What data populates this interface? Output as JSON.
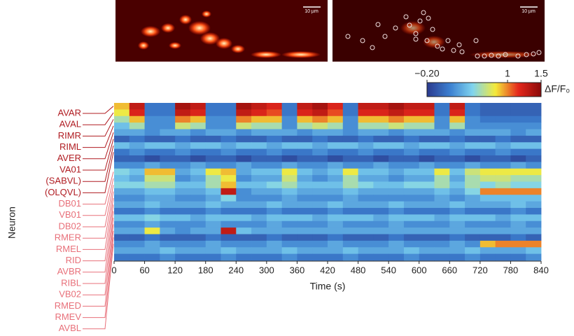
{
  "chart_data": {
    "type": "heatmap",
    "x_label": "Time (s)",
    "y_label": "Neuron",
    "xlim": [
      0,
      840
    ],
    "xticks": [
      0,
      60,
      120,
      180,
      240,
      300,
      360,
      420,
      480,
      540,
      600,
      660,
      720,
      780,
      840
    ],
    "clim": [
      -0.2,
      1.5
    ],
    "cticks": [
      {
        "value": -0.2,
        "label": "−0.20"
      },
      1,
      1.5
    ],
    "colorbar_label": "ΔF/F₀",
    "colormap": [
      "#2a3a8e",
      "#3c7fd0",
      "#7fd4ef",
      "#f4ea3a",
      "#e5281c",
      "#8a0a0a"
    ],
    "scale_bars": [
      "10 µm",
      "10 µm"
    ],
    "neuron_groups": [
      {
        "color": "#b01c22",
        "names": [
          "AVAR",
          "AVAL",
          "RIMR",
          "RIML",
          "AVER",
          "VA01",
          "(SABVL)",
          "(OLQVL)"
        ]
      },
      {
        "color": "#e8707a",
        "names": [
          "DB01",
          "VB01",
          "DB02",
          "RMER",
          "RMEL",
          "RID",
          "AVBR",
          "RIBL",
          "VB02",
          "RMED",
          "RMEV",
          "AVBL"
        ]
      }
    ],
    "values": [
      [
        0.9,
        1.3,
        0.1,
        0.1,
        1.4,
        1.3,
        0.1,
        0.1,
        1.4,
        1.3,
        1.2,
        0.1,
        1.3,
        1.4,
        1.2,
        0.1,
        1.3,
        1.3,
        1.4,
        1.3,
        1.3,
        0.1,
        1.3,
        0.1,
        0.0,
        0.0,
        0.0,
        0.0
      ],
      [
        0.8,
        1.2,
        0.1,
        0.1,
        1.3,
        1.2,
        0.1,
        0.1,
        1.3,
        1.2,
        1.1,
        0.1,
        1.2,
        1.3,
        1.1,
        0.1,
        1.2,
        1.2,
        1.3,
        1.2,
        1.2,
        0.1,
        1.2,
        0.1,
        0.0,
        0.0,
        0.0,
        0.0
      ],
      [
        0.6,
        0.9,
        0.2,
        0.2,
        1.0,
        0.9,
        0.2,
        0.2,
        1.0,
        0.9,
        0.9,
        0.2,
        0.9,
        1.0,
        0.9,
        0.2,
        0.9,
        0.9,
        1.0,
        0.9,
        0.9,
        0.2,
        0.9,
        0.2,
        0.1,
        0.1,
        0.1,
        0.1
      ],
      [
        0.4,
        0.6,
        0.2,
        0.2,
        0.7,
        0.6,
        0.2,
        0.2,
        0.7,
        0.6,
        0.6,
        0.2,
        0.6,
        0.7,
        0.6,
        0.2,
        0.6,
        0.6,
        0.7,
        0.6,
        0.6,
        0.2,
        0.6,
        0.2,
        0.2,
        0.2,
        0.2,
        0.2
      ],
      [
        0.3,
        0.3,
        0.2,
        0.3,
        0.3,
        0.2,
        0.3,
        0.3,
        0.2,
        0.3,
        0.3,
        0.3,
        0.2,
        0.3,
        0.3,
        0.2,
        0.3,
        0.3,
        0.2,
        0.3,
        0.3,
        0.3,
        0.2,
        0.3,
        0.3,
        0.3,
        0.2,
        0.3
      ],
      [
        0.0,
        0.1,
        0.0,
        0.0,
        0.1,
        0.0,
        0.0,
        0.1,
        0.0,
        0.0,
        0.1,
        0.0,
        0.0,
        0.1,
        0.0,
        0.0,
        0.1,
        0.0,
        0.0,
        0.1,
        0.0,
        0.0,
        0.1,
        0.0,
        0.0,
        0.1,
        0.0,
        0.0
      ],
      [
        0.4,
        0.3,
        0.4,
        0.4,
        0.3,
        0.4,
        0.4,
        0.3,
        0.4,
        0.4,
        0.3,
        0.4,
        0.4,
        0.3,
        0.4,
        0.4,
        0.3,
        0.4,
        0.4,
        0.3,
        0.4,
        0.4,
        0.3,
        0.4,
        0.4,
        0.3,
        0.4,
        0.4
      ],
      [
        0.1,
        0.2,
        0.1,
        0.1,
        0.2,
        0.1,
        0.1,
        0.2,
        0.1,
        0.1,
        0.2,
        0.1,
        0.1,
        0.2,
        0.1,
        0.1,
        0.2,
        0.1,
        0.1,
        0.2,
        0.1,
        0.1,
        0.2,
        0.1,
        0.1,
        0.2,
        0.1,
        0.1
      ],
      [
        0.0,
        0.0,
        -0.1,
        0.0,
        0.0,
        -0.1,
        0.0,
        0.0,
        -0.1,
        0.0,
        0.0,
        -0.1,
        0.0,
        0.0,
        -0.1,
        0.0,
        0.0,
        -0.1,
        0.0,
        0.0,
        -0.1,
        0.0,
        0.0,
        -0.1,
        0.0,
        0.0,
        -0.1,
        0.0
      ],
      [
        0.2,
        0.2,
        0.3,
        0.2,
        0.2,
        0.3,
        0.2,
        0.2,
        0.3,
        0.2,
        0.2,
        0.3,
        0.2,
        0.2,
        0.3,
        0.2,
        0.2,
        0.3,
        0.2,
        0.2,
        0.3,
        0.2,
        0.2,
        0.3,
        0.2,
        0.2,
        0.3,
        0.2
      ],
      [
        0.5,
        0.4,
        0.9,
        0.9,
        0.3,
        0.4,
        0.8,
        0.9,
        0.3,
        0.4,
        0.4,
        0.8,
        0.4,
        0.3,
        0.4,
        0.8,
        0.4,
        0.4,
        0.3,
        0.4,
        0.4,
        0.8,
        0.4,
        0.7,
        0.8,
        0.8,
        0.8,
        0.8
      ],
      [
        0.4,
        0.3,
        0.7,
        0.7,
        0.2,
        0.3,
        0.6,
        0.8,
        0.2,
        0.3,
        0.3,
        0.7,
        0.3,
        0.2,
        0.3,
        0.6,
        0.3,
        0.3,
        0.2,
        0.3,
        0.3,
        0.6,
        0.3,
        0.6,
        0.7,
        0.7,
        0.6,
        0.6
      ],
      [
        0.5,
        0.5,
        0.6,
        0.6,
        0.4,
        0.4,
        0.6,
        0.9,
        0.4,
        0.4,
        0.5,
        0.6,
        0.4,
        0.4,
        0.4,
        0.6,
        0.5,
        0.4,
        0.4,
        0.5,
        0.5,
        0.6,
        0.4,
        0.6,
        0.5,
        0.6,
        0.5,
        0.5
      ],
      [
        0.3,
        0.3,
        0.4,
        0.4,
        0.3,
        0.3,
        0.4,
        1.3,
        0.2,
        0.3,
        0.3,
        0.4,
        0.3,
        0.3,
        0.3,
        0.4,
        0.3,
        0.3,
        0.3,
        0.3,
        0.3,
        0.4,
        0.3,
        0.5,
        1.0,
        1.0,
        1.0,
        1.0
      ],
      [
        0.2,
        0.2,
        0.3,
        0.3,
        0.2,
        0.2,
        0.3,
        0.5,
        0.2,
        0.2,
        0.2,
        0.3,
        0.2,
        0.2,
        0.2,
        0.3,
        0.2,
        0.2,
        0.2,
        0.2,
        0.2,
        0.3,
        0.2,
        0.3,
        0.4,
        0.4,
        0.4,
        0.4
      ],
      [
        0.3,
        0.3,
        0.4,
        0.3,
        0.3,
        0.3,
        0.4,
        0.3,
        0.3,
        0.3,
        0.4,
        0.3,
        0.3,
        0.3,
        0.4,
        0.3,
        0.3,
        0.3,
        0.4,
        0.3,
        0.3,
        0.3,
        0.4,
        0.3,
        0.3,
        0.3,
        0.4,
        0.3
      ],
      [
        0.1,
        0.1,
        0.2,
        0.1,
        0.1,
        0.1,
        0.2,
        0.1,
        0.1,
        0.1,
        0.2,
        0.1,
        0.1,
        0.1,
        0.2,
        0.1,
        0.1,
        0.1,
        0.2,
        0.1,
        0.1,
        0.1,
        0.2,
        0.1,
        0.1,
        0.1,
        0.2,
        0.1
      ],
      [
        0.4,
        0.4,
        0.5,
        0.4,
        0.4,
        0.3,
        0.4,
        0.4,
        0.4,
        0.3,
        0.4,
        0.4,
        0.4,
        0.3,
        0.4,
        0.4,
        0.4,
        0.3,
        0.4,
        0.4,
        0.4,
        0.3,
        0.4,
        0.4,
        0.4,
        0.3,
        0.4,
        0.4
      ],
      [
        0.2,
        0.2,
        0.3,
        0.2,
        0.2,
        0.2,
        0.3,
        0.2,
        0.2,
        0.2,
        0.3,
        0.2,
        0.2,
        0.2,
        0.3,
        0.2,
        0.2,
        0.2,
        0.3,
        0.2,
        0.2,
        0.2,
        0.3,
        0.2,
        0.2,
        0.2,
        0.3,
        0.2
      ],
      [
        0.3,
        0.3,
        0.8,
        0.3,
        0.2,
        0.3,
        0.3,
        1.3,
        0.4,
        0.3,
        0.3,
        0.3,
        0.3,
        0.3,
        0.3,
        0.3,
        0.3,
        0.3,
        0.3,
        0.3,
        0.3,
        0.3,
        0.3,
        0.3,
        0.3,
        0.3,
        0.3,
        0.3
      ],
      [
        0.0,
        0.0,
        0.1,
        0.0,
        0.0,
        0.0,
        0.1,
        0.0,
        0.0,
        0.0,
        0.1,
        0.0,
        0.0,
        0.0,
        0.1,
        0.0,
        0.0,
        0.0,
        0.1,
        0.0,
        0.0,
        0.0,
        0.1,
        0.0,
        0.0,
        0.0,
        0.1,
        0.0
      ],
      [
        0.2,
        0.2,
        0.3,
        0.2,
        0.2,
        0.2,
        0.3,
        0.2,
        0.2,
        0.2,
        0.3,
        0.2,
        0.2,
        0.2,
        0.3,
        0.2,
        0.2,
        0.2,
        0.3,
        0.2,
        0.2,
        0.2,
        0.3,
        0.2,
        0.9,
        1.0,
        1.0,
        1.0
      ],
      [
        0.3,
        0.3,
        0.3,
        0.4,
        0.3,
        0.3,
        0.3,
        0.4,
        0.3,
        0.3,
        0.3,
        0.4,
        0.3,
        0.3,
        0.3,
        0.4,
        0.3,
        0.3,
        0.3,
        0.4,
        0.3,
        0.3,
        0.3,
        0.4,
        0.3,
        0.3,
        0.3,
        0.4
      ],
      [
        0.1,
        0.1,
        0.1,
        0.2,
        0.1,
        0.1,
        0.1,
        0.2,
        0.1,
        0.1,
        0.1,
        0.2,
        0.1,
        0.1,
        0.1,
        0.2,
        0.1,
        0.1,
        0.1,
        0.2,
        0.1,
        0.1,
        0.1,
        0.2,
        0.1,
        0.1,
        0.1,
        0.2
      ]
    ]
  }
}
